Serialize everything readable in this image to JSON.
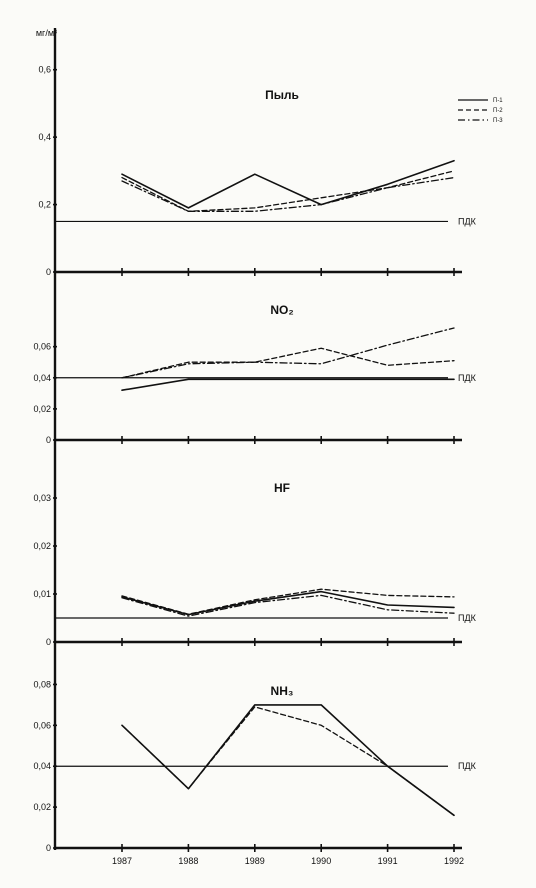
{
  "chart_data": {
    "type": "line",
    "y_unit": "мг/м³",
    "x": [
      "1987",
      "1988",
      "1989",
      "1990",
      "1991",
      "1992"
    ],
    "legend": [
      {
        "name": "П-1",
        "dash": "solid"
      },
      {
        "name": "П-2",
        "dash": "dashed"
      },
      {
        "name": "П-3",
        "dash": "dashdot"
      }
    ],
    "panels": [
      {
        "title": "Пыль",
        "ylim": [
          0,
          0.7
        ],
        "yticks": [
          0,
          0.2,
          0.4,
          0.6
        ],
        "ytick_labels": [
          "0",
          "0,2",
          "0,4",
          "0,6"
        ],
        "pdk": 0.15,
        "pdk_label": "ПДК",
        "series": [
          {
            "name": "П-1",
            "values": [
              0.29,
              0.19,
              0.29,
              0.2,
              0.26,
              0.33
            ]
          },
          {
            "name": "П-2",
            "values": [
              0.28,
              0.18,
              0.19,
              0.22,
              0.25,
              0.3
            ]
          },
          {
            "name": "П-3",
            "values": [
              0.27,
              0.18,
              0.18,
              0.2,
              0.25,
              0.28
            ]
          }
        ]
      },
      {
        "title": "NO₂",
        "ylim": [
          0,
          0.09
        ],
        "yticks": [
          0,
          0.02,
          0.04,
          0.06
        ],
        "ytick_labels": [
          "0",
          "0,02",
          "0,04",
          "0,06"
        ],
        "pdk": 0.04,
        "pdk_label": "ПДК",
        "series": [
          {
            "name": "П-1",
            "values": [
              0.032,
              0.039,
              0.039,
              0.039,
              0.039,
              0.039
            ]
          },
          {
            "name": "П-2",
            "values": [
              0.04,
              0.05,
              0.05,
              0.059,
              0.048,
              0.051
            ]
          },
          {
            "name": "П-3",
            "values": [
              0.04,
              0.049,
              0.05,
              0.049,
              0.061,
              0.072
            ]
          }
        ]
      },
      {
        "title": "HF",
        "ylim": [
          0,
          0.04
        ],
        "yticks": [
          0,
          0.01,
          0.02,
          0.03
        ],
        "ytick_labels": [
          "0",
          "0,01",
          "0,02",
          "0,03"
        ],
        "pdk": 0.005,
        "pdk_label": "ПДК",
        "series": [
          {
            "name": "П-1",
            "values": [
              0.0094,
              0.0057,
              0.0085,
              0.0105,
              0.0077,
              0.0072
            ]
          },
          {
            "name": "П-2",
            "values": [
              0.0096,
              0.0058,
              0.0088,
              0.011,
              0.0097,
              0.0094
            ]
          },
          {
            "name": "П-3",
            "values": [
              0.0092,
              0.0054,
              0.0082,
              0.0097,
              0.0067,
              0.006
            ]
          }
        ]
      },
      {
        "title": "NH₃",
        "ylim": [
          0,
          0.09
        ],
        "yticks": [
          0,
          0.02,
          0.04,
          0.06,
          0.08
        ],
        "ytick_labels": [
          "0",
          "0,02",
          "0,04",
          "0,06",
          "0,08"
        ],
        "pdk": 0.04,
        "pdk_label": "ПДК",
        "series": [
          {
            "name": "П-1",
            "values": [
              0.06,
              0.029,
              0.07,
              0.07,
              0.04,
              0.016
            ]
          },
          {
            "name": "П-2",
            "values": [
              0.06,
              0.029,
              0.069,
              0.06,
              0.04,
              0.016
            ]
          }
        ]
      }
    ]
  }
}
